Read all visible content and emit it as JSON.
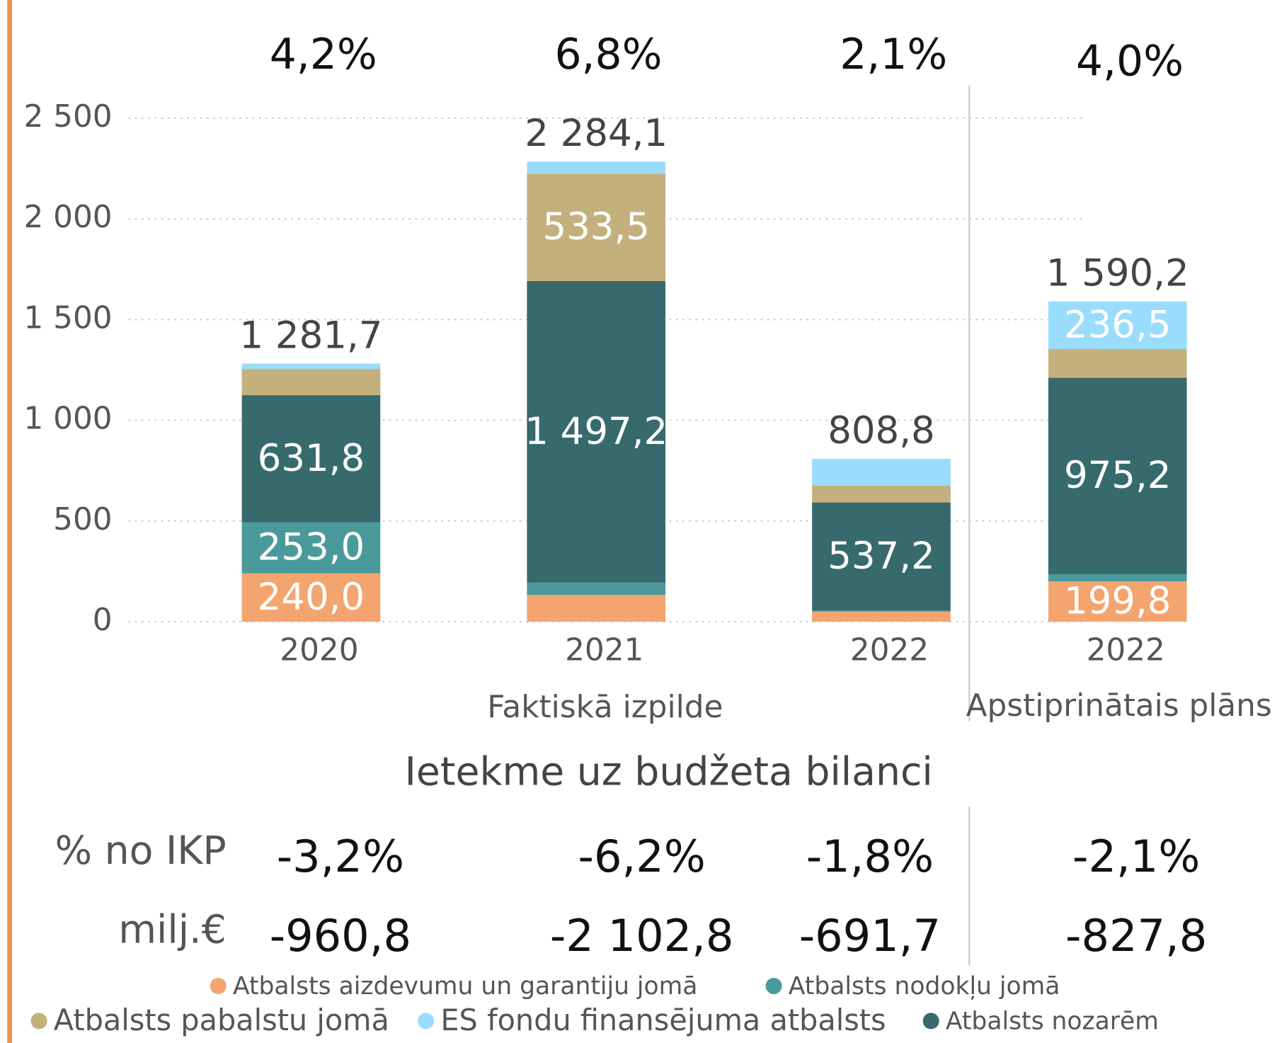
{
  "chart_data": {
    "type": "stacked_bar",
    "categories": [
      "2020",
      "2021",
      "2022",
      "2022"
    ],
    "groups": [
      "Faktiskā izpilde",
      "Apstiprinātais plāns"
    ],
    "top_labels": [
      "4,2%",
      "6,8%",
      "2,1%",
      "4,0%"
    ],
    "total_labels": [
      "1 281,7",
      "2 284,1",
      "808,8",
      "1 590,2"
    ],
    "series": [
      {
        "name": "Atbalsts aizdevumu un garantiju jomā",
        "color": "#f4a46e",
        "values": [
          240.0,
          133,
          50,
          199.8
        ],
        "value_labels": [
          "240,0",
          null,
          null,
          "199,8"
        ]
      },
      {
        "name": "Atbalsts nodokļu jomā",
        "color": "#4a9a9b",
        "values": [
          253.0,
          61,
          5,
          36
        ],
        "value_labels": [
          "253,0",
          null,
          null,
          null
        ]
      },
      {
        "name": "Atbalsts nozarēm",
        "color": "#366a6c",
        "values": [
          631.8,
          1497.2,
          537.2,
          975.2
        ],
        "value_labels": [
          "631,8",
          "1 497,2",
          "537,2",
          "975,2"
        ]
      },
      {
        "name": "Atbalsts pabalstu jomā",
        "color": "#c4b07c",
        "values": [
          130,
          533.5,
          84,
          142.7
        ],
        "value_labels": [
          null,
          "533,5",
          null,
          null
        ]
      },
      {
        "name": "ES fondu finansējuma atbalsts",
        "color": "#9adcfc",
        "values": [
          26.9,
          59.4,
          132.6,
          236.5
        ],
        "value_labels": [
          null,
          null,
          null,
          "236,5"
        ]
      }
    ],
    "ylim": [
      0,
      2500
    ],
    "yticks": [
      0,
      500,
      {
        "value": 1000,
        "label": "1 000"
      },
      {
        "value": 1500,
        "label": "1 500"
      },
      {
        "value": 2000,
        "label": "2 000"
      },
      {
        "value": 2500,
        "label": "2 500"
      }
    ],
    "grid": true
  },
  "balance": {
    "title": "Ietekme uz budžeta bilanci",
    "rows": [
      {
        "label": "% no IKP",
        "values": [
          "-3,2%",
          "-6,2%",
          "-1,8%",
          "-2,1%"
        ]
      },
      {
        "label": "milj.€",
        "values": [
          "-960,8",
          "-2 102,8",
          "-691,7",
          "-827,8"
        ]
      }
    ]
  }
}
